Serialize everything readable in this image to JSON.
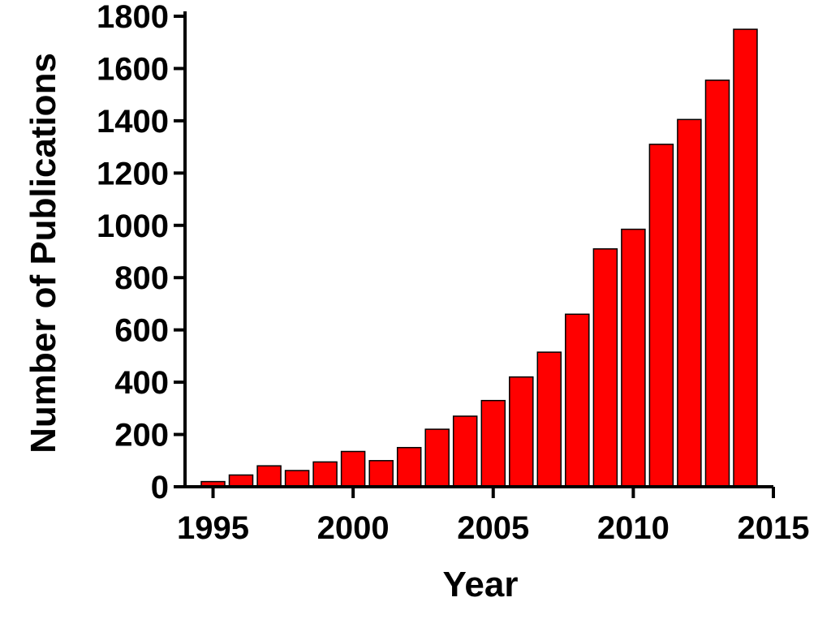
{
  "chart_data": {
    "type": "bar",
    "title": "",
    "xlabel": "Year",
    "ylabel": "Number of Publications",
    "x": [
      1995,
      1996,
      1997,
      1998,
      1999,
      2000,
      2001,
      2002,
      2003,
      2004,
      2005,
      2006,
      2007,
      2008,
      2009,
      2010,
      2011,
      2012,
      2013,
      2014
    ],
    "values": [
      20,
      45,
      80,
      62,
      95,
      135,
      100,
      150,
      220,
      270,
      330,
      420,
      515,
      660,
      910,
      985,
      1310,
      1405,
      1555,
      1750
    ],
    "xlim": [
      1994,
      2015
    ],
    "ylim": [
      0,
      1800
    ],
    "x_ticks": [
      "1995",
      "2000",
      "2005",
      "2010",
      "2015"
    ],
    "y_ticks": [
      "0",
      "200",
      "400",
      "600",
      "800",
      "1000",
      "1200",
      "1400",
      "1600",
      "1800"
    ],
    "grid": false,
    "bar_color": "#ff0000",
    "bar_edge_color": "#000000"
  }
}
